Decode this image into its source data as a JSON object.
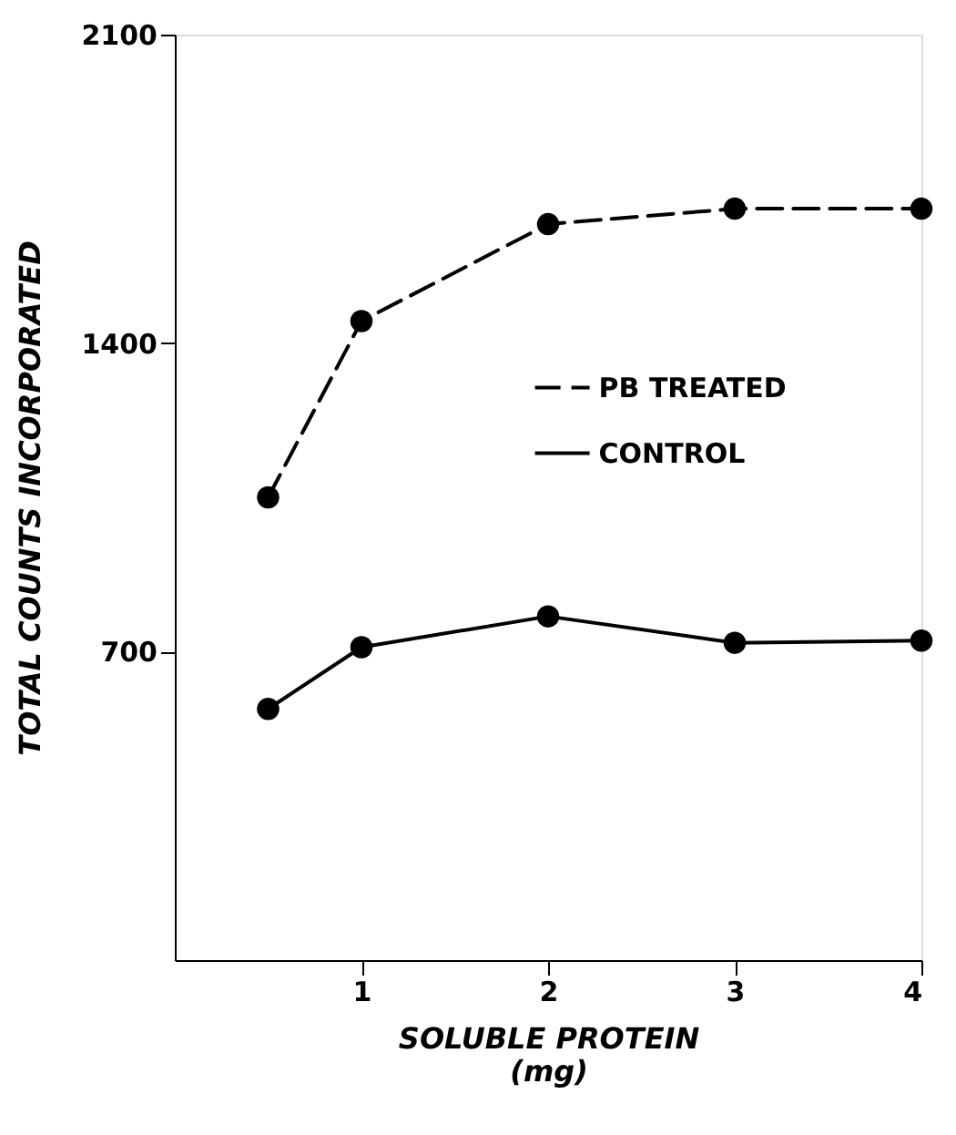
{
  "chart_data": {
    "type": "line",
    "xlabel": "SOLUBLE PROTEIN\n(mg)",
    "ylabel": "TOTAL COUNTS INCORPORATED",
    "x": [
      0.5,
      1,
      2,
      3,
      4
    ],
    "series": [
      {
        "name": "PB TREATED",
        "color": "#000000",
        "line_style": "dashed",
        "values": [
          1050,
          1450,
          1670,
          1705,
          1705
        ]
      },
      {
        "name": "CONTROL",
        "color": "#000000",
        "line_style": "solid",
        "values": [
          570,
          710,
          780,
          720,
          725
        ]
      }
    ],
    "xlim": [
      0,
      4
    ],
    "xticks": [
      1,
      2,
      3,
      4
    ],
    "ylim": [
      0,
      2100
    ],
    "yticks": [
      700,
      1400,
      2100
    ],
    "marker": "circle",
    "grid": false,
    "legend": "right"
  }
}
